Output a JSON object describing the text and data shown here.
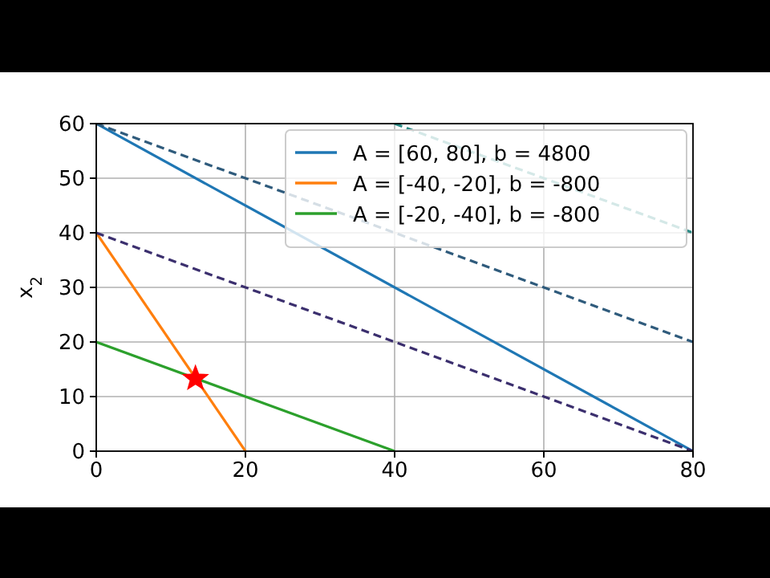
{
  "chart_data": {
    "type": "line",
    "ylabel": "x$_{2}$",
    "xlim": [
      0,
      80
    ],
    "ylim": [
      0,
      60
    ],
    "xticks": [
      0,
      20,
      40,
      60,
      80
    ],
    "yticks": [
      0,
      10,
      20,
      30,
      40,
      50,
      60
    ],
    "grid": true,
    "legend": "top right",
    "line_style": "solid",
    "marker": "none",
    "series": [
      {
        "name": "A = [60, 80], b = 4800",
        "color": "#1f77b4",
        "x": [
          0,
          80
        ],
        "values": [
          60,
          0
        ]
      },
      {
        "name": "A = [-40, -20], b = -800",
        "color": "#ff7f0e",
        "x": [
          0,
          20
        ],
        "values": [
          40,
          0
        ]
      },
      {
        "name": "A = [-20, -40], b = -800",
        "color": "#2ca02c",
        "x": [
          0,
          40
        ],
        "values": [
          20,
          0
        ]
      },
      {
        "color": "#3b2f6e",
        "x": [
          0,
          80
        ],
        "values": [
          40,
          0
        ],
        "line_style": "dashed"
      },
      {
        "color": "#2f5b7c",
        "x": [
          0,
          80
        ],
        "values": [
          60,
          20
        ],
        "line_style": "dashed"
      },
      {
        "color": "#2a8a85",
        "x": [
          40,
          80
        ],
        "values": [
          60,
          40
        ],
        "line_style": "dashed"
      },
      {
        "type": "scatter",
        "color": "#ff0000",
        "marker": "star",
        "x": [
          13.3
        ],
        "values": [
          13.3
        ]
      }
    ]
  }
}
